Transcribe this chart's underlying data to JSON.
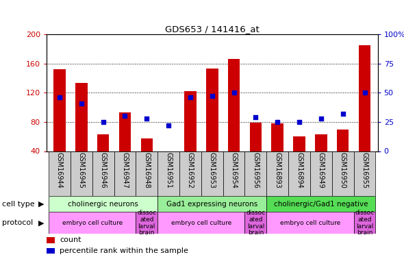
{
  "title": "GDS653 / 141416_at",
  "samples": [
    "GSM16944",
    "GSM16945",
    "GSM16946",
    "GSM16947",
    "GSM16948",
    "GSM16951",
    "GSM16952",
    "GSM16953",
    "GSM16954",
    "GSM16956",
    "GSM16893",
    "GSM16894",
    "GSM16949",
    "GSM16950",
    "GSM16955"
  ],
  "counts": [
    152,
    133,
    63,
    93,
    57,
    40,
    122,
    153,
    166,
    79,
    78,
    60,
    63,
    70,
    185
  ],
  "percentiles": [
    46,
    41,
    25,
    30,
    28,
    22,
    46,
    47,
    50,
    29,
    25,
    25,
    28,
    32,
    50
  ],
  "ylim_left": [
    40,
    200
  ],
  "ylim_right": [
    0,
    100
  ],
  "yticks_left": [
    40,
    80,
    120,
    160,
    200
  ],
  "yticks_right": [
    0,
    25,
    50,
    75,
    100
  ],
  "bar_color": "#cc0000",
  "dot_color": "#0000cc",
  "cell_types": [
    {
      "label": "cholinergic neurons",
      "start": 0,
      "end": 5,
      "color": "#ccffcc"
    },
    {
      "label": "Gad1 expressing neurons",
      "start": 5,
      "end": 10,
      "color": "#99ee99"
    },
    {
      "label": "cholinergic/Gad1 negative",
      "start": 10,
      "end": 15,
      "color": "#55dd55"
    }
  ],
  "protocols": [
    {
      "label": "embryo cell culture",
      "start": 0,
      "end": 4,
      "color": "#ff99ff"
    },
    {
      "label": "dissoc\nated\nlarval\nbrain",
      "start": 4,
      "end": 5,
      "color": "#dd66dd"
    },
    {
      "label": "embryo cell culture",
      "start": 5,
      "end": 9,
      "color": "#ff99ff"
    },
    {
      "label": "dissoc\nated\nlarval\nbrain",
      "start": 9,
      "end": 10,
      "color": "#dd66dd"
    },
    {
      "label": "embryo cell culture",
      "start": 10,
      "end": 14,
      "color": "#ff99ff"
    },
    {
      "label": "dissoc\nated\nlarval\nbrain",
      "start": 14,
      "end": 15,
      "color": "#dd66dd"
    }
  ],
  "tick_color_left": "#cc0000",
  "tick_color_right": "#0000cc",
  "bg_color": "#ffffff",
  "xtick_bg": "#cccccc",
  "legend_red": "#cc0000",
  "legend_blue": "#0000cc"
}
